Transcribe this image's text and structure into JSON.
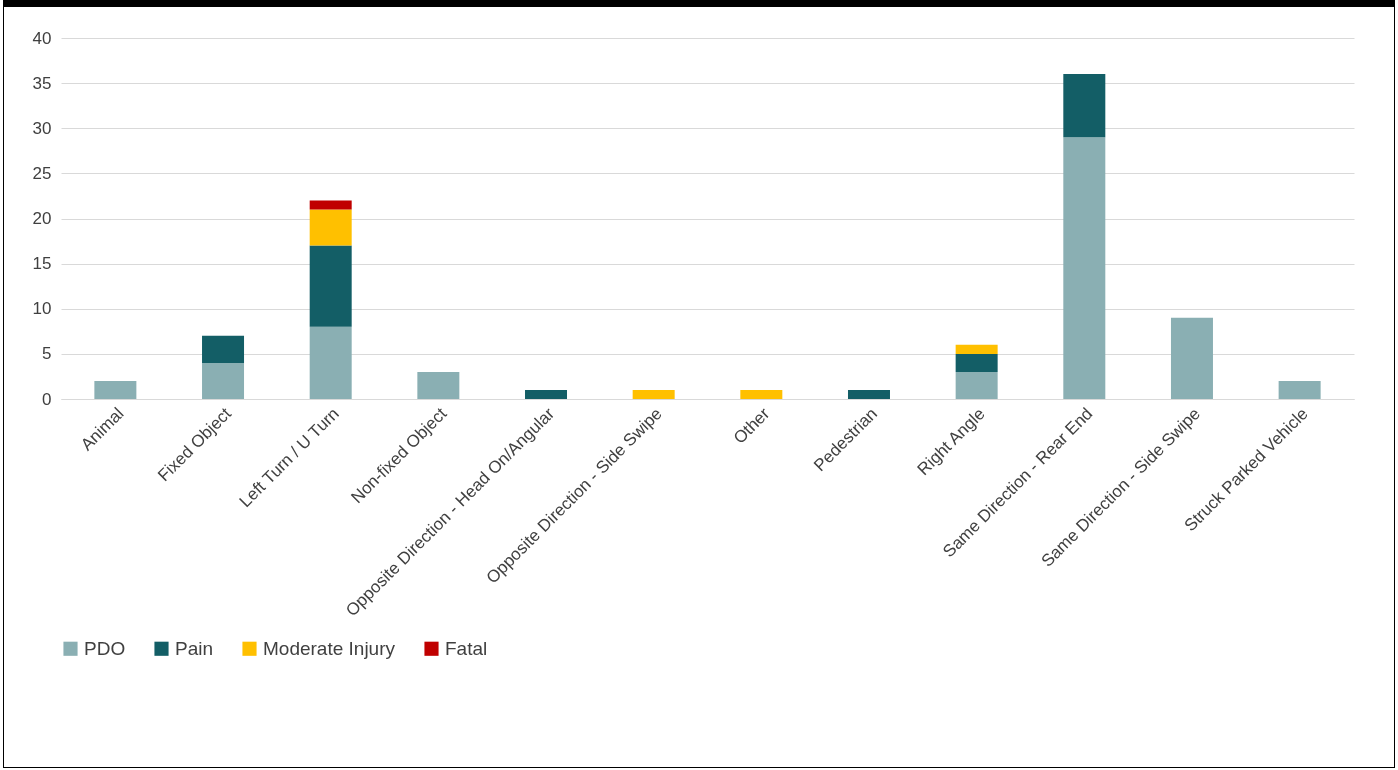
{
  "chart_data": {
    "type": "bar",
    "stacked": true,
    "categories": [
      "Animal",
      "Fixed Object",
      "Left Turn / U Turn",
      "Non-fixed Object",
      "Opposite Direction - Head On/Angular",
      "Opposite Direction - Side Swipe",
      "Other",
      "Pedestrian",
      "Right Angle",
      "Same Direction - Rear End",
      "Same Direction - Side Swipe",
      "Struck Parked Vehicle"
    ],
    "series": [
      {
        "name": "PDO",
        "color": "#8aafb3",
        "values": [
          2,
          4,
          8,
          3,
          null,
          null,
          null,
          null,
          3,
          29,
          9,
          2
        ]
      },
      {
        "name": "Pain",
        "color": "#135e66",
        "values": [
          null,
          3,
          9,
          null,
          1,
          null,
          null,
          1,
          2,
          7,
          null,
          null
        ]
      },
      {
        "name": "Moderate Injury",
        "color": "#ffc000",
        "values": [
          null,
          null,
          4,
          null,
          null,
          1,
          1,
          null,
          1,
          null,
          null,
          null
        ]
      },
      {
        "name": "Fatal",
        "color": "#c00000",
        "values": [
          null,
          null,
          1,
          null,
          null,
          null,
          null,
          null,
          null,
          null,
          null,
          null
        ]
      }
    ],
    "ylim": [
      0,
      40
    ],
    "yticks": [
      0,
      5,
      10,
      15,
      20,
      25,
      30,
      35,
      40
    ],
    "grid": "y",
    "legend": "bottom"
  }
}
